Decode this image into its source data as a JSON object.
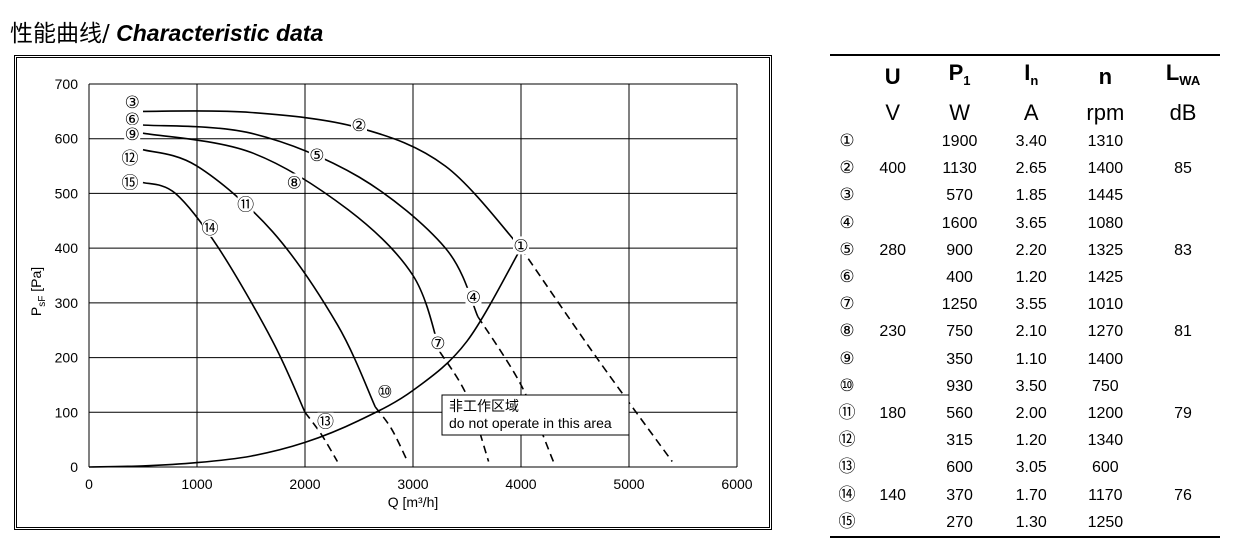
{
  "title": {
    "cn": "性能曲线/",
    "en": " Characteristic data"
  },
  "chart_data": {
    "type": "line",
    "xlabel": "Q [m³/h]",
    "ylabel": "P",
    "ylabel_sub": "sF",
    "ylabel_unit": " [Pa]",
    "xlim": [
      0,
      6000
    ],
    "ylim": [
      0,
      700
    ],
    "xticks": [
      "0",
      "1000",
      "2000",
      "3000",
      "4000",
      "5000",
      "6000"
    ],
    "yticks": [
      "0",
      "100",
      "200",
      "300",
      "400",
      "500",
      "600",
      "700"
    ],
    "grid": true,
    "fan_curves": [
      {
        "label": "③",
        "solid": [
          [
            500,
            650
          ],
          [
            1500,
            648
          ],
          [
            2500,
            620
          ],
          [
            3300,
            550
          ],
          [
            4000,
            400
          ]
        ],
        "dashed": [
          [
            4000,
            400
          ],
          [
            4700,
            200
          ],
          [
            5400,
            10
          ]
        ]
      },
      {
        "label": "⑥",
        "solid": [
          [
            500,
            625
          ],
          [
            1500,
            610
          ],
          [
            2500,
            530
          ],
          [
            3300,
            400
          ],
          [
            3600,
            275
          ]
        ],
        "dashed": [
          [
            3600,
            275
          ],
          [
            4000,
            150
          ],
          [
            4300,
            10
          ]
        ]
      },
      {
        "label": "⑨",
        "solid": [
          [
            500,
            610
          ],
          [
            1500,
            575
          ],
          [
            2400,
            470
          ],
          [
            3000,
            350
          ],
          [
            3250,
            210
          ]
        ],
        "dashed": [
          [
            3250,
            210
          ],
          [
            3500,
            130
          ],
          [
            3700,
            10
          ]
        ]
      },
      {
        "label": "⑫",
        "solid": [
          [
            500,
            580
          ],
          [
            1000,
            550
          ],
          [
            1700,
            430
          ],
          [
            2300,
            260
          ],
          [
            2650,
            110
          ]
        ],
        "dashed": [
          [
            2650,
            110
          ],
          [
            2800,
            70
          ],
          [
            2950,
            10
          ]
        ]
      },
      {
        "label": "⑮",
        "solid": [
          [
            500,
            520
          ],
          [
            800,
            500
          ],
          [
            1200,
            400
          ],
          [
            1700,
            230
          ],
          [
            2000,
            100
          ]
        ],
        "dashed": [
          [
            2000,
            100
          ],
          [
            2150,
            60
          ],
          [
            2300,
            10
          ]
        ]
      }
    ],
    "system_curve": [
      [
        0,
        0
      ],
      [
        500,
        2
      ],
      [
        1000,
        8
      ],
      [
        1500,
        20
      ],
      [
        2000,
        45
      ],
      [
        2500,
        85
      ],
      [
        3000,
        140
      ],
      [
        3500,
        230
      ],
      [
        4000,
        400
      ]
    ],
    "markers": [
      {
        "label": "①",
        "x": 4000,
        "y": 405
      },
      {
        "label": "②",
        "x": 2500,
        "y": 625
      },
      {
        "label": "③",
        "x": 400,
        "y": 667
      },
      {
        "label": "④",
        "x": 3560,
        "y": 311
      },
      {
        "label": "⑤",
        "x": 2110,
        "y": 570
      },
      {
        "label": "⑥",
        "x": 400,
        "y": 636
      },
      {
        "label": "⑦",
        "x": 3230,
        "y": 227
      },
      {
        "label": "⑧",
        "x": 1900,
        "y": 520
      },
      {
        "label": "⑨",
        "x": 400,
        "y": 609
      },
      {
        "label": "⑩",
        "x": 2740,
        "y": 138
      },
      {
        "label": "⑪",
        "x": 1450,
        "y": 480
      },
      {
        "label": "⑫",
        "x": 380,
        "y": 565
      },
      {
        "label": "⑬",
        "x": 2190,
        "y": 83
      },
      {
        "label": "⑭",
        "x": 1120,
        "y": 437
      },
      {
        "label": "⑮",
        "x": 380,
        "y": 520
      }
    ],
    "annotation": {
      "line1": "非工作区域",
      "line2": "do not operate in this area"
    }
  },
  "table": {
    "headers": [
      {
        "main": "U",
        "sub": ""
      },
      {
        "main": "P",
        "sub": "1"
      },
      {
        "main": "I",
        "sub": "n"
      },
      {
        "main": "n",
        "sub": ""
      },
      {
        "main": "L",
        "sub": "WA"
      }
    ],
    "units": [
      "V",
      "W",
      "A",
      "rpm",
      "dB"
    ],
    "rows": [
      [
        "①",
        "",
        "1900",
        "3.40",
        "1310",
        ""
      ],
      [
        "②",
        "400",
        "1130",
        "2.65",
        "1400",
        "85"
      ],
      [
        "③",
        "",
        "570",
        "1.85",
        "1445",
        ""
      ],
      [
        "④",
        "",
        "1600",
        "3.65",
        "1080",
        ""
      ],
      [
        "⑤",
        "280",
        "900",
        "2.20",
        "1325",
        "83"
      ],
      [
        "⑥",
        "",
        "400",
        "1.20",
        "1425",
        ""
      ],
      [
        "⑦",
        "",
        "1250",
        "3.55",
        "1010",
        ""
      ],
      [
        "⑧",
        "230",
        "750",
        "2.10",
        "1270",
        "81"
      ],
      [
        "⑨",
        "",
        "350",
        "1.10",
        "1400",
        ""
      ],
      [
        "⑩",
        "",
        "930",
        "3.50",
        "750",
        ""
      ],
      [
        "⑪",
        "180",
        "560",
        "2.00",
        "1200",
        "79"
      ],
      [
        "⑫",
        "",
        "315",
        "1.20",
        "1340",
        ""
      ],
      [
        "⑬",
        "",
        "600",
        "3.05",
        "600",
        ""
      ],
      [
        "⑭",
        "140",
        "370",
        "1.70",
        "1170",
        "76"
      ],
      [
        "⑮",
        "",
        "270",
        "1.30",
        "1250",
        ""
      ]
    ]
  }
}
